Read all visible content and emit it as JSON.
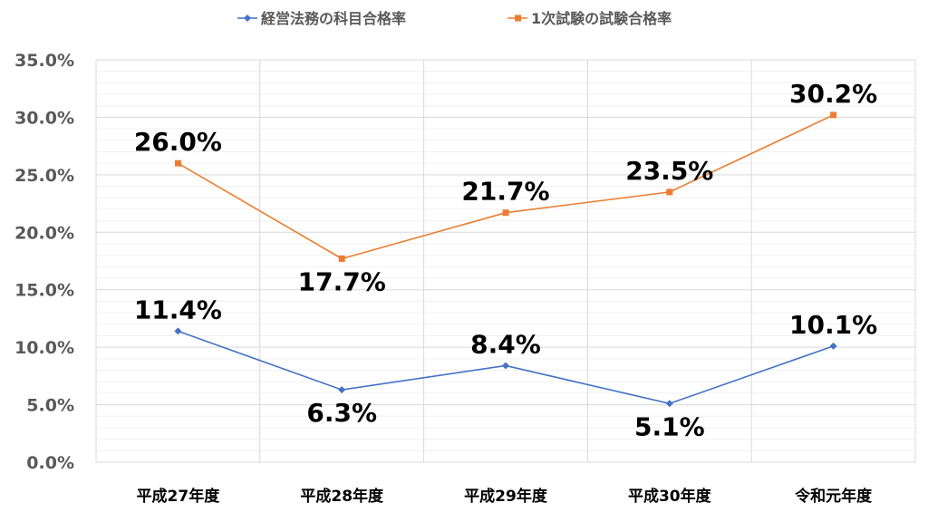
{
  "chart_data": {
    "type": "line",
    "categories": [
      "平成27年度",
      "平成28年度",
      "平成29年度",
      "平成30年度",
      "令和元年度"
    ],
    "series": [
      {
        "name": "経営法務の科目合格率",
        "values": [
          11.4,
          6.3,
          8.4,
          5.1,
          10.1
        ],
        "labels": [
          "11.4%",
          "6.3%",
          "8.4%",
          "5.1%",
          "10.1%"
        ],
        "color": "#4472C4",
        "marker": "diamond",
        "label_position": [
          "above",
          "below",
          "above",
          "below",
          "above"
        ]
      },
      {
        "name": "1次試験の試験合格率",
        "values": [
          26.0,
          17.7,
          21.7,
          23.5,
          30.2
        ],
        "labels": [
          "26.0%",
          "17.7%",
          "21.7%",
          "23.5%",
          "30.2%"
        ],
        "color": "#ED7D31",
        "marker": "square",
        "label_position": [
          "above",
          "below",
          "above",
          "above",
          "above"
        ]
      }
    ],
    "y_ticks": [
      "0.0%",
      "5.0%",
      "10.0%",
      "15.0%",
      "20.0%",
      "25.0%",
      "30.0%",
      "35.0%"
    ],
    "ylim": [
      0,
      35
    ],
    "major_step": 5,
    "minor_step": 1,
    "grid": true,
    "legend_position": "top"
  }
}
